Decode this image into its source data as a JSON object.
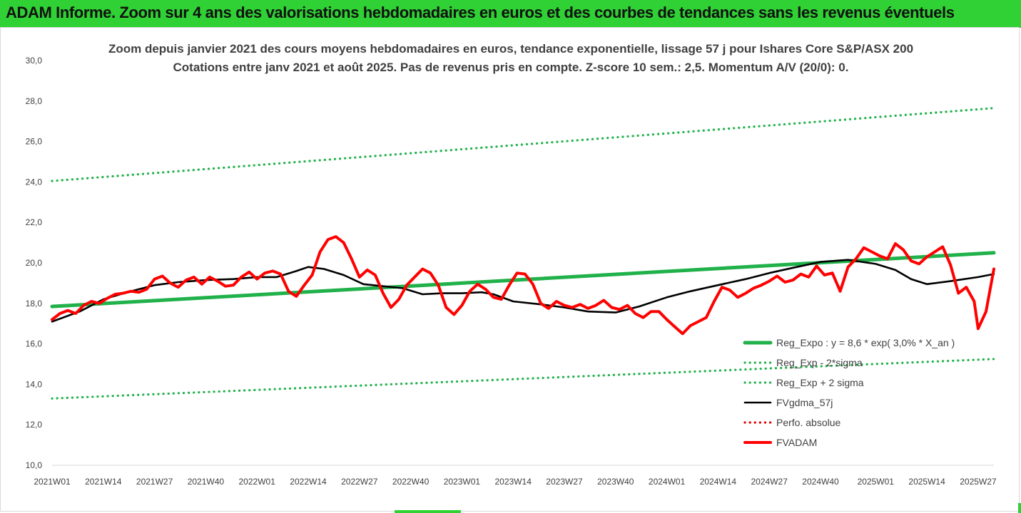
{
  "banner": {
    "title": "ADAM Informe. Zoom sur 4 ans des valorisations hebdomadaires en euros et des courbes de tendances sans les revenus éventuels"
  },
  "chart_data": {
    "type": "line",
    "title": "Zoom depuis janvier 2021 des cours moyens hebdomadaires en euros, tendance exponentielle, lissage 57 j pour Ishares Core S&P/ASX 200",
    "subtitle": "Cotations entre janv 2021 et août 2025.  Pas de revenus pris en compte. Z-score 10 sem.: 2,5. Momentum A/V (20/0): 0.",
    "ylim": [
      10,
      30
    ],
    "yticks": [
      "10,0",
      "12,0",
      "14,0",
      "16,0",
      "18,0",
      "20,0",
      "22,0",
      "24,0",
      "26,0",
      "28,0",
      "30,0"
    ],
    "x_week_range": [
      1,
      240
    ],
    "xticks": [
      {
        "label": "2021W01",
        "week": 1
      },
      {
        "label": "2021W14",
        "week": 14
      },
      {
        "label": "2021W27",
        "week": 27
      },
      {
        "label": "2021W40",
        "week": 40
      },
      {
        "label": "2022W01",
        "week": 53
      },
      {
        "label": "2022W14",
        "week": 66
      },
      {
        "label": "2022W27",
        "week": 79
      },
      {
        "label": "2022W40",
        "week": 92
      },
      {
        "label": "2023W01",
        "week": 105
      },
      {
        "label": "2023W14",
        "week": 118
      },
      {
        "label": "2023W27",
        "week": 131
      },
      {
        "label": "2023W40",
        "week": 144
      },
      {
        "label": "2024W01",
        "week": 157
      },
      {
        "label": "2024W14",
        "week": 170
      },
      {
        "label": "2024W27",
        "week": 183
      },
      {
        "label": "2024W40",
        "week": 196
      },
      {
        "label": "2025W01",
        "week": 210
      },
      {
        "label": "2025W14",
        "week": 223
      },
      {
        "label": "2025W27",
        "week": 236
      }
    ],
    "legend_position": "bottom-right",
    "grid": false,
    "series": [
      {
        "name": "Reg_Expo : y = 8,6 * exp( 3,0% *  X_an )",
        "color": "#21b14b",
        "style": "solid-thick",
        "points": [
          [
            1,
            17.85
          ],
          [
            240,
            20.5
          ]
        ]
      },
      {
        "name": "Reg_Exp - 2*sigma",
        "color": "#21b14b",
        "style": "dotted",
        "points": [
          [
            1,
            13.3
          ],
          [
            240,
            15.25
          ]
        ]
      },
      {
        "name": "Reg_Exp + 2 sigma",
        "color": "#21b14b",
        "style": "dotted",
        "points": [
          [
            1,
            24.05
          ],
          [
            240,
            27.65
          ]
        ]
      },
      {
        "name": "FVgdma_57j",
        "color": "#000000",
        "style": "solid",
        "points": [
          [
            1,
            17.1
          ],
          [
            8,
            17.6
          ],
          [
            14,
            18.2
          ],
          [
            20,
            18.55
          ],
          [
            27,
            18.9
          ],
          [
            33,
            19.05
          ],
          [
            40,
            19.15
          ],
          [
            47,
            19.2
          ],
          [
            53,
            19.3
          ],
          [
            58,
            19.3
          ],
          [
            63,
            19.6
          ],
          [
            66,
            19.8
          ],
          [
            70,
            19.7
          ],
          [
            75,
            19.4
          ],
          [
            80,
            18.95
          ],
          [
            85,
            18.85
          ],
          [
            90,
            18.75
          ],
          [
            95,
            18.45
          ],
          [
            100,
            18.5
          ],
          [
            105,
            18.5
          ],
          [
            110,
            18.55
          ],
          [
            113,
            18.45
          ],
          [
            118,
            18.1
          ],
          [
            125,
            17.95
          ],
          [
            131,
            17.8
          ],
          [
            137,
            17.6
          ],
          [
            144,
            17.55
          ],
          [
            150,
            17.85
          ],
          [
            157,
            18.3
          ],
          [
            163,
            18.6
          ],
          [
            170,
            18.9
          ],
          [
            177,
            19.2
          ],
          [
            183,
            19.5
          ],
          [
            190,
            19.8
          ],
          [
            196,
            20.05
          ],
          [
            203,
            20.15
          ],
          [
            210,
            19.95
          ],
          [
            215,
            19.65
          ],
          [
            219,
            19.2
          ],
          [
            223,
            18.95
          ],
          [
            229,
            19.1
          ],
          [
            236,
            19.3
          ],
          [
            240,
            19.45
          ]
        ]
      },
      {
        "name": "Perfo. absolue",
        "color": "#e50000",
        "style": "dotted",
        "points": []
      },
      {
        "name": "FVADAM",
        "color": "#ff0000",
        "style": "solid-thick",
        "points": [
          [
            1,
            17.2
          ],
          [
            3,
            17.5
          ],
          [
            5,
            17.65
          ],
          [
            7,
            17.5
          ],
          [
            9,
            17.9
          ],
          [
            11,
            18.1
          ],
          [
            13,
            18.0
          ],
          [
            15,
            18.25
          ],
          [
            17,
            18.45
          ],
          [
            19,
            18.5
          ],
          [
            21,
            18.6
          ],
          [
            23,
            18.55
          ],
          [
            25,
            18.7
          ],
          [
            27,
            19.2
          ],
          [
            29,
            19.35
          ],
          [
            31,
            19.0
          ],
          [
            33,
            18.8
          ],
          [
            35,
            19.15
          ],
          [
            37,
            19.3
          ],
          [
            39,
            18.95
          ],
          [
            41,
            19.3
          ],
          [
            43,
            19.1
          ],
          [
            45,
            18.85
          ],
          [
            47,
            18.9
          ],
          [
            49,
            19.3
          ],
          [
            51,
            19.55
          ],
          [
            53,
            19.2
          ],
          [
            55,
            19.5
          ],
          [
            57,
            19.6
          ],
          [
            59,
            19.45
          ],
          [
            61,
            18.6
          ],
          [
            63,
            18.35
          ],
          [
            65,
            18.9
          ],
          [
            67,
            19.4
          ],
          [
            69,
            20.55
          ],
          [
            71,
            21.15
          ],
          [
            73,
            21.3
          ],
          [
            75,
            21.0
          ],
          [
            77,
            20.2
          ],
          [
            79,
            19.3
          ],
          [
            81,
            19.65
          ],
          [
            83,
            19.4
          ],
          [
            85,
            18.5
          ],
          [
            87,
            17.8
          ],
          [
            89,
            18.2
          ],
          [
            91,
            18.9
          ],
          [
            93,
            19.3
          ],
          [
            95,
            19.7
          ],
          [
            97,
            19.5
          ],
          [
            99,
            18.9
          ],
          [
            101,
            17.8
          ],
          [
            103,
            17.45
          ],
          [
            105,
            17.9
          ],
          [
            107,
            18.6
          ],
          [
            109,
            18.95
          ],
          [
            111,
            18.7
          ],
          [
            113,
            18.3
          ],
          [
            115,
            18.2
          ],
          [
            117,
            18.9
          ],
          [
            119,
            19.5
          ],
          [
            121,
            19.45
          ],
          [
            123,
            18.95
          ],
          [
            125,
            18.0
          ],
          [
            127,
            17.75
          ],
          [
            129,
            18.1
          ],
          [
            131,
            17.9
          ],
          [
            133,
            17.8
          ],
          [
            135,
            17.95
          ],
          [
            137,
            17.75
          ],
          [
            139,
            17.9
          ],
          [
            141,
            18.15
          ],
          [
            143,
            17.8
          ],
          [
            145,
            17.7
          ],
          [
            147,
            17.9
          ],
          [
            149,
            17.5
          ],
          [
            151,
            17.3
          ],
          [
            153,
            17.6
          ],
          [
            155,
            17.6
          ],
          [
            157,
            17.2
          ],
          [
            159,
            16.85
          ],
          [
            161,
            16.5
          ],
          [
            163,
            16.9
          ],
          [
            165,
            17.1
          ],
          [
            167,
            17.3
          ],
          [
            169,
            18.1
          ],
          [
            171,
            18.8
          ],
          [
            173,
            18.65
          ],
          [
            175,
            18.3
          ],
          [
            177,
            18.5
          ],
          [
            179,
            18.75
          ],
          [
            181,
            18.9
          ],
          [
            183,
            19.1
          ],
          [
            185,
            19.35
          ],
          [
            187,
            19.05
          ],
          [
            189,
            19.15
          ],
          [
            191,
            19.45
          ],
          [
            193,
            19.3
          ],
          [
            195,
            19.85
          ],
          [
            197,
            19.4
          ],
          [
            199,
            19.5
          ],
          [
            201,
            18.6
          ],
          [
            203,
            19.8
          ],
          [
            205,
            20.2
          ],
          [
            207,
            20.75
          ],
          [
            209,
            20.55
          ],
          [
            211,
            20.35
          ],
          [
            213,
            20.2
          ],
          [
            215,
            20.95
          ],
          [
            217,
            20.65
          ],
          [
            219,
            20.1
          ],
          [
            221,
            19.95
          ],
          [
            223,
            20.3
          ],
          [
            225,
            20.55
          ],
          [
            227,
            20.8
          ],
          [
            229,
            19.9
          ],
          [
            231,
            18.5
          ],
          [
            233,
            18.8
          ],
          [
            235,
            18.1
          ],
          [
            236,
            16.75
          ],
          [
            238,
            17.6
          ],
          [
            240,
            19.7
          ]
        ]
      }
    ]
  }
}
